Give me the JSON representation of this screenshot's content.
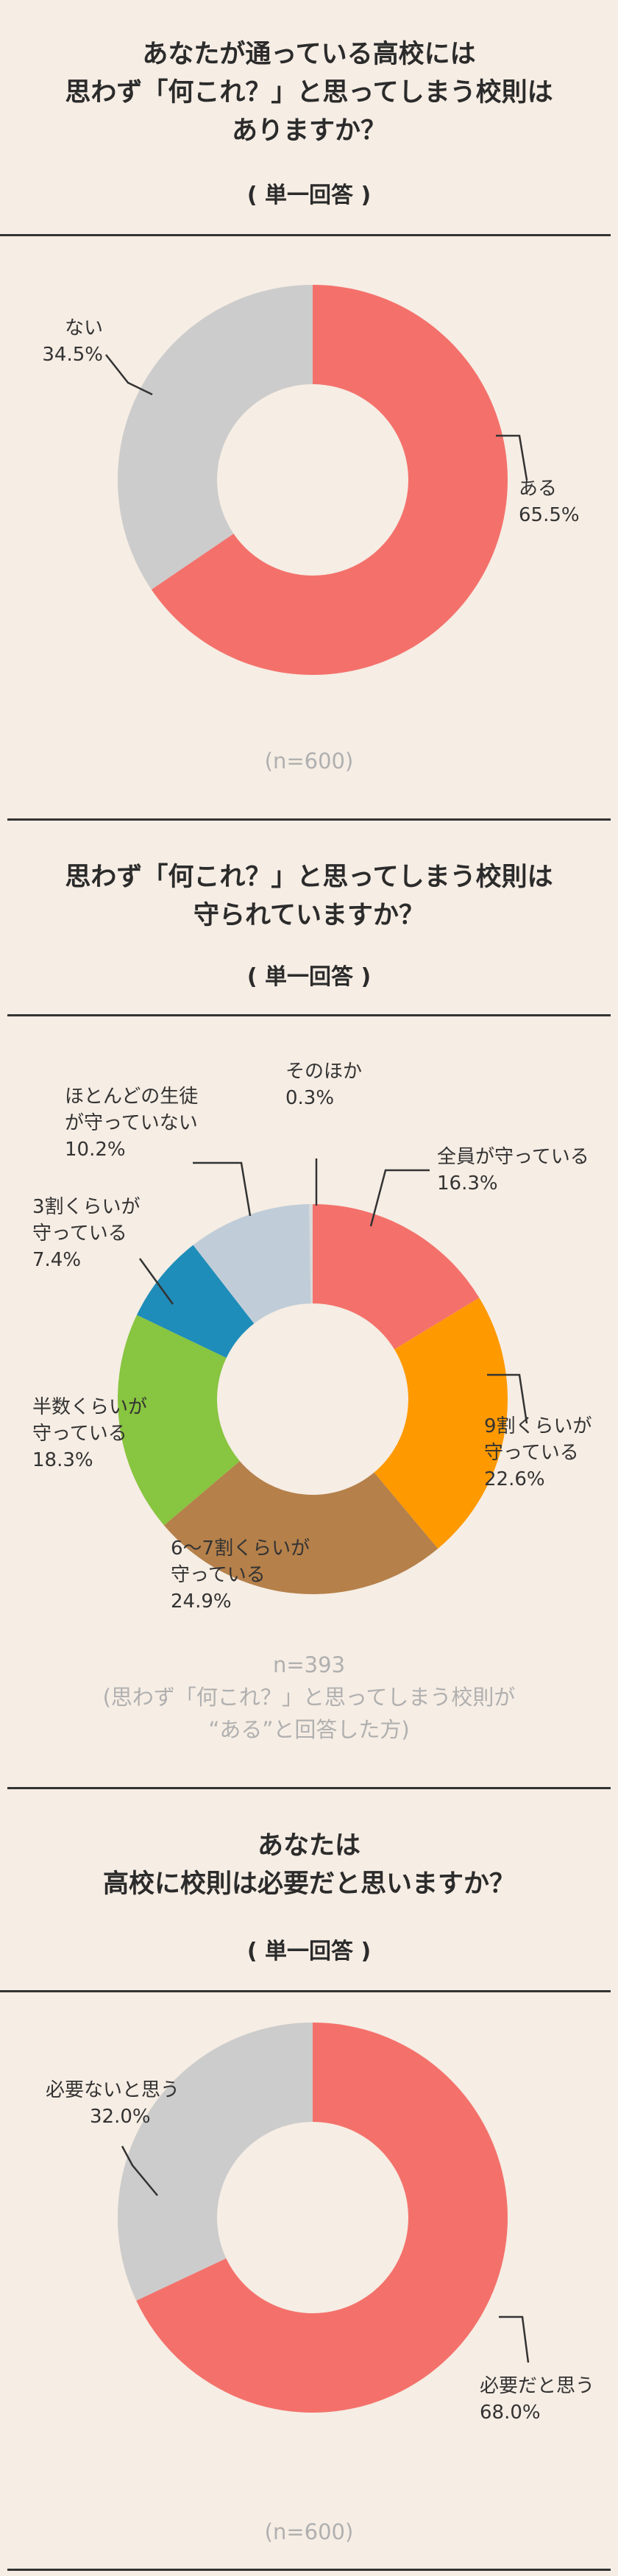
{
  "section1": {
    "title_lines": [
      "あなたが通っている高校には",
      "思わず「何これ？」と思ってしまう校則は",
      "ありますか？"
    ],
    "answer_type": "( 単一回答 )",
    "sample": "(n=600)"
  },
  "section2": {
    "title_lines": [
      "思わず「何これ？」と思ってしまう校則は",
      "守られていますか？"
    ],
    "answer_type": "( 単一回答 )",
    "sample_lines": [
      "n=393",
      "(思わず「何これ？」と思ってしまう校則が",
      "“ある”と回答した方)"
    ]
  },
  "section3": {
    "title_lines": [
      "あなたは",
      "高校に校則は必要だと思いますか？"
    ],
    "answer_type": "( 単一回答 )",
    "sample": "(n=600)"
  },
  "chart_data": [
    {
      "type": "pie",
      "title": "あなたが通っている高校には思わず「何これ？」と思ってしまう校則はありますか？",
      "categories": [
        "ある",
        "ない"
      ],
      "values": [
        65.5,
        34.5
      ],
      "value_labels": [
        "65.5%",
        "34.5%"
      ],
      "colors": [
        "#f4716b",
        "#cccccc"
      ],
      "donut": true
    },
    {
      "type": "pie",
      "title": "思わず「何これ？」と思ってしまう校則は守られていますか？",
      "categories": [
        "全員が守っている",
        "9割くらいが守っている",
        "6〜7割くらいが守っている",
        "半数くらいが守っている",
        "3割くらいが守っている",
        "ほとんどの生徒が守っていない",
        "そのほか"
      ],
      "label_lines": [
        [
          "全員が守っている"
        ],
        [
          "9割くらいが",
          "守っている"
        ],
        [
          "6〜7割くらいが",
          "守っている"
        ],
        [
          "半数くらいが",
          "守っている"
        ],
        [
          "3割くらいが",
          "守っている"
        ],
        [
          "ほとんどの生徒",
          "が守っていない"
        ],
        [
          "そのほか"
        ]
      ],
      "values": [
        16.3,
        22.6,
        24.9,
        18.3,
        7.4,
        10.2,
        0.3
      ],
      "value_labels": [
        "16.3%",
        "22.6%",
        "24.9%",
        "18.3%",
        "7.4%",
        "10.2%",
        "0.3%"
      ],
      "colors": [
        "#f4716b",
        "#ff9900",
        "#b5804a",
        "#88c540",
        "#1f8db9",
        "#c0cdd8",
        "#d9d9d9"
      ],
      "donut": true
    },
    {
      "type": "pie",
      "title": "あなたは高校に校則は必要だと思いますか？",
      "categories": [
        "必要だと思う",
        "必要ないと思う"
      ],
      "values": [
        68.0,
        32.0
      ],
      "value_labels": [
        "68.0%",
        "32.0%"
      ],
      "colors": [
        "#f4716b",
        "#cccccc"
      ],
      "donut": true
    }
  ]
}
